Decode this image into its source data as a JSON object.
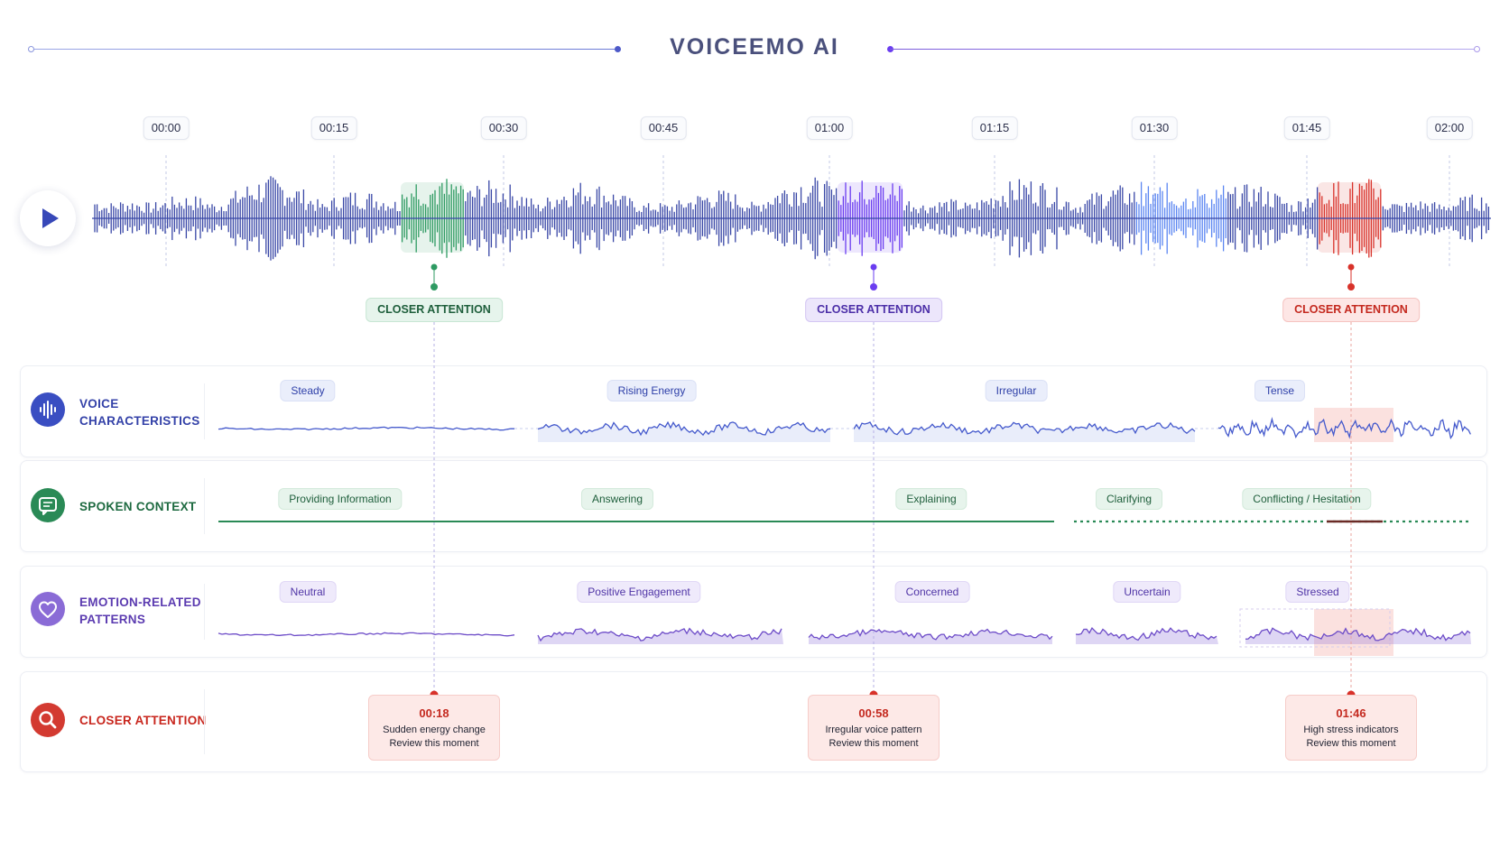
{
  "app": {
    "title": "VOICEEMO AI"
  },
  "colors": {
    "brand_blue": "#3947a6",
    "accent_green": "#2e9a62",
    "accent_purple": "#6a3df0",
    "accent_lightblue": "#5b86f2",
    "accent_red": "#d8322a"
  },
  "timeline": {
    "ticks": [
      "00:00",
      "00:15",
      "00:30",
      "00:45",
      "01:00",
      "01:15",
      "01:30",
      "01:45",
      "02:00"
    ]
  },
  "player": {
    "play_icon": "play-icon"
  },
  "attention_markers": [
    {
      "label": "CLOSER ATTENTION",
      "color": "green"
    },
    {
      "label": "CLOSER ATTENTION",
      "color": "purple"
    },
    {
      "label": "CLOSER ATTENTION",
      "color": "red"
    }
  ],
  "rows": [
    {
      "title_line1": "VOICE",
      "title_line2": "CHARACTERISTICS",
      "icon": "soundwave-icon",
      "segments": [
        "Steady",
        "Rising Energy",
        "Irregular",
        "Tense"
      ]
    },
    {
      "title": "SPOKEN CONTEXT",
      "icon": "chat-bubble-icon",
      "segments": [
        "Providing Information",
        "Answering",
        "Explaining",
        "Clarifying",
        "Conflicting / Hesitation"
      ]
    },
    {
      "title_line1": "EMOTION-RELATED",
      "title_line2": "PATTERNS",
      "icon": "heart-icon",
      "segments": [
        "Neutral",
        "Positive Engagement",
        "Concerned",
        "Uncertain",
        "Stressed"
      ]
    },
    {
      "title": "CLOSER ATTENTION",
      "icon": "magnifier-icon"
    }
  ],
  "attention_cards": [
    {
      "time": "00:18",
      "description": "Sudden energy change",
      "action": "Review this moment"
    },
    {
      "time": "00:58",
      "description": "Irregular voice pattern",
      "action": "Review this moment"
    },
    {
      "time": "01:46",
      "description": "High stress indicators",
      "action": "Review this moment"
    }
  ]
}
